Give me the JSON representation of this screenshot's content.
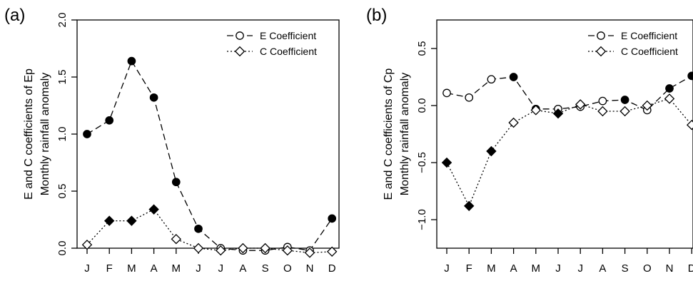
{
  "chart_data": [
    {
      "type": "line",
      "panel_label": "(a)",
      "ylabel": [
        "E and C coefficients of Ep",
        "Monthly rainfall anomaly"
      ],
      "categories": [
        "J",
        "F",
        "M",
        "A",
        "M",
        "J",
        "J",
        "A",
        "S",
        "O",
        "N",
        "D"
      ],
      "ylim": [
        0.0,
        2.0
      ],
      "yticks": [
        "0.0",
        "0.5",
        "1.0",
        "1.5",
        "2.0"
      ],
      "ytick_values": [
        0,
        0.5,
        1.0,
        1.5,
        2.0
      ],
      "legend_position": "top-right",
      "grid": false,
      "series": [
        {
          "name": "E Coefficient",
          "line": "dashed",
          "marker": "circle",
          "values": [
            1.0,
            1.12,
            1.64,
            1.32,
            0.58,
            0.17,
            0.0,
            -0.02,
            -0.02,
            0.01,
            -0.02,
            0.26
          ],
          "filled": [
            true,
            true,
            true,
            true,
            true,
            true,
            false,
            false,
            false,
            false,
            false,
            true
          ]
        },
        {
          "name": "C Coefficient",
          "line": "dotted",
          "marker": "diamond",
          "values": [
            0.03,
            0.24,
            0.24,
            0.34,
            0.08,
            0.0,
            -0.02,
            0.0,
            0.0,
            -0.02,
            -0.04,
            -0.03
          ],
          "filled": [
            false,
            true,
            true,
            true,
            false,
            false,
            false,
            false,
            false,
            false,
            false,
            false
          ]
        }
      ]
    },
    {
      "type": "line",
      "panel_label": "(b)",
      "ylabel": [
        "E and C coefficients of Cp",
        "Monthly rainfall anomaly"
      ],
      "categories": [
        "J",
        "F",
        "M",
        "A",
        "M",
        "J",
        "J",
        "A",
        "S",
        "O",
        "N",
        "D"
      ],
      "ylim": [
        -1.25,
        0.75
      ],
      "yticks": [
        "−1.0",
        "−0.5",
        "0.0",
        "0.5"
      ],
      "ytick_values": [
        -1.0,
        -0.5,
        0.0,
        0.5
      ],
      "legend_position": "top-right",
      "grid": false,
      "series": [
        {
          "name": "E Coefficient",
          "line": "dashed",
          "marker": "circle",
          "values": [
            0.11,
            0.07,
            0.23,
            0.25,
            -0.03,
            -0.03,
            -0.01,
            0.04,
            0.05,
            -0.04,
            0.15,
            0.26
          ],
          "filled": [
            false,
            false,
            false,
            true,
            true,
            false,
            false,
            false,
            true,
            false,
            true,
            true
          ]
        },
        {
          "name": "C Coefficient",
          "line": "dotted",
          "marker": "diamond",
          "values": [
            -0.5,
            -0.88,
            -0.4,
            -0.15,
            -0.04,
            -0.07,
            0.01,
            -0.05,
            -0.05,
            0.0,
            0.06,
            -0.17
          ],
          "filled": [
            true,
            true,
            true,
            false,
            false,
            true,
            false,
            false,
            false,
            false,
            false,
            false
          ]
        }
      ]
    }
  ]
}
